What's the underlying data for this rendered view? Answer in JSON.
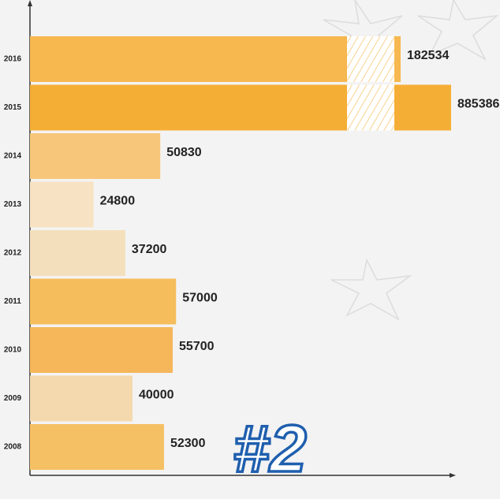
{
  "chart_data": {
    "type": "bar",
    "orientation": "horizontal",
    "categories": [
      "2016",
      "2015",
      "2014",
      "2013",
      "2012",
      "2011",
      "2010",
      "2009",
      "2008"
    ],
    "values": [
      182534,
      885386,
      50830,
      24800,
      37200,
      57000,
      55700,
      40000,
      52300
    ],
    "colors": [
      "#f6b84f",
      "#f5ae35",
      "#f7c67a",
      "#f7e3c3",
      "#f4dfbc",
      "#f6bd5c",
      "#f5b75a",
      "#f4d9ae",
      "#f5c064"
    ],
    "annotation": "#2"
  }
}
